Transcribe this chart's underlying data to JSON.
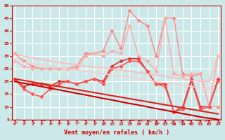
{
  "xlabel": "Vent moyen/en rafales ( km/h )",
  "bg_color": "#cce8e8",
  "grid_color": "#ffffff",
  "ylim": [
    5,
    50
  ],
  "yticks": [
    5,
    10,
    15,
    20,
    25,
    30,
    35,
    40,
    45,
    50
  ],
  "xticks": [
    0,
    1,
    2,
    3,
    4,
    5,
    6,
    7,
    8,
    9,
    10,
    11,
    12,
    13,
    14,
    15,
    16,
    17,
    18,
    19,
    20,
    21,
    22,
    23
  ],
  "series": [
    {
      "name": "rafales_peak",
      "color": "#ff8888",
      "marker": "D",
      "markersize": 2.5,
      "linewidth": 1.0,
      "y": [
        31,
        28,
        26,
        25,
        25,
        25,
        25,
        26,
        31,
        31,
        32,
        40,
        33,
        48,
        44,
        42,
        30,
        45,
        45,
        23,
        22,
        23,
        10,
        10
      ]
    },
    {
      "name": "rafales_moy",
      "color": "#ffaaaa",
      "marker": "D",
      "markersize": 2.5,
      "linewidth": 1.0,
      "y": [
        28,
        26,
        25,
        25,
        25,
        25,
        25,
        25,
        30,
        31,
        30,
        32,
        31,
        42,
        30,
        28,
        24,
        45,
        23,
        22,
        23,
        23,
        10,
        30
      ]
    },
    {
      "name": "vent_max",
      "color": "#dd3333",
      "marker": "D",
      "markersize": 2.5,
      "linewidth": 1.2,
      "y": [
        21,
        18,
        19,
        19,
        18,
        20,
        20,
        19,
        20,
        21,
        20,
        26,
        28,
        29,
        29,
        24,
        19,
        19,
        8,
        10,
        21,
        10,
        10,
        21
      ]
    },
    {
      "name": "vent_moy",
      "color": "#ff5555",
      "marker": "D",
      "markersize": 2.5,
      "linewidth": 1.2,
      "y": [
        21,
        17,
        15,
        14,
        17,
        19,
        20,
        19,
        20,
        21,
        19,
        25,
        26,
        28,
        28,
        24,
        19,
        18,
        8,
        9,
        20,
        9,
        10,
        20
      ]
    },
    {
      "name": "trend_dark1",
      "color": "#cc0000",
      "marker": null,
      "linewidth": 1.5,
      "y": [
        20,
        19.3,
        18.7,
        18.0,
        17.3,
        16.7,
        16.0,
        15.3,
        14.7,
        14.0,
        13.3,
        12.7,
        12.0,
        11.3,
        10.7,
        10.0,
        9.3,
        8.7,
        8.0,
        7.3,
        6.7,
        6.0,
        5.5,
        5.0
      ]
    },
    {
      "name": "trend_dark2",
      "color": "#dd2222",
      "marker": null,
      "linewidth": 1.5,
      "y": [
        21,
        20.4,
        19.8,
        19.2,
        18.6,
        18.0,
        17.4,
        16.8,
        16.2,
        15.6,
        15.0,
        14.4,
        13.8,
        13.2,
        12.6,
        12.0,
        11.4,
        10.8,
        10.2,
        9.6,
        9.0,
        8.4,
        7.8,
        7.2
      ]
    },
    {
      "name": "trend_light",
      "color": "#ffbbbb",
      "marker": null,
      "linewidth": 1.2,
      "y": [
        31,
        30.0,
        29.3,
        28.7,
        28.0,
        27.5,
        27.0,
        26.5,
        26.0,
        25.5,
        25.3,
        25.0,
        24.5,
        24.0,
        23.5,
        23.0,
        22.5,
        22.0,
        21.5,
        21.0,
        20.5,
        20.0,
        20.0,
        30
      ]
    },
    {
      "name": "trend_light2",
      "color": "#ffcccc",
      "marker": null,
      "linewidth": 1.2,
      "y": [
        28,
        27.5,
        27.0,
        26.5,
        26.0,
        25.5,
        25.0,
        24.5,
        24.0,
        23.5,
        23.0,
        22.5,
        22.0,
        21.5,
        21.0,
        20.5,
        20.0,
        19.5,
        19.0,
        18.5,
        18.0,
        17.5,
        17.0,
        22
      ]
    }
  ]
}
